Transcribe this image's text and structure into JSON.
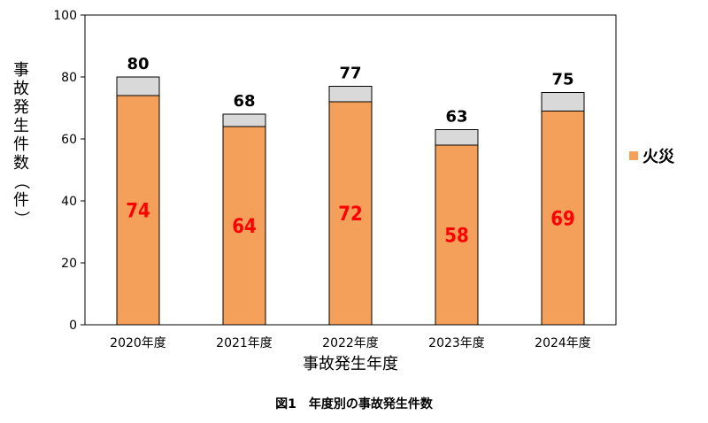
{
  "chart_data": {
    "type": "bar",
    "stacked": true,
    "categories": [
      "2020年度",
      "2021年度",
      "2022年度",
      "2023年度",
      "2024年度"
    ],
    "series": [
      {
        "name": "火災",
        "values": [
          74,
          64,
          72,
          58,
          69
        ],
        "color": "#F4A05A"
      },
      {
        "values": [
          6,
          4,
          5,
          5,
          6
        ],
        "color": "#D9D9D9"
      }
    ],
    "totals": [
      80,
      68,
      77,
      63,
      75
    ],
    "xlabel": "事故発生年度",
    "ylabel": "事故発生件数（件）",
    "ylim": [
      0,
      100
    ],
    "yticks": [
      0,
      20,
      40,
      60,
      80,
      100
    ],
    "inner_label_color": "#FF0000",
    "legend_position": "right",
    "grid": false
  },
  "caption": "図1　年度別の事故発生件数"
}
